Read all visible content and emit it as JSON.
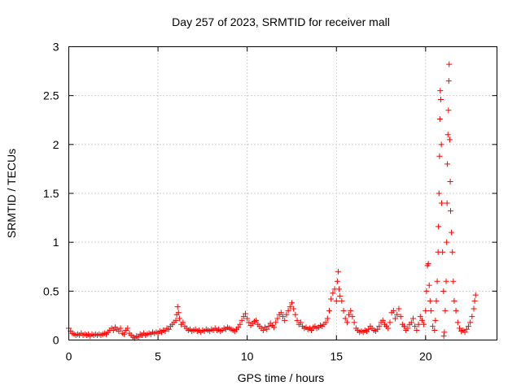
{
  "chart_data": {
    "type": "scatter",
    "title": "Day 257 of 2023, SRMTID for receiver mall",
    "xlabel": "GPS time / hours",
    "ylabel": "SRMTID / TECUs",
    "xlim": [
      0,
      24
    ],
    "ylim": [
      0,
      3
    ],
    "x_ticks": [
      0,
      5,
      10,
      15,
      20
    ],
    "x_tick_labels": [
      "0",
      "5",
      "10",
      "15",
      "20"
    ],
    "y_ticks": [
      0,
      0.5,
      1,
      1.5,
      2,
      2.5,
      3
    ],
    "y_tick_labels": [
      "0",
      "0.5",
      "1",
      "1.5",
      "2",
      "2.5",
      "3"
    ],
    "grid": true,
    "marker": "+",
    "series": [
      {
        "name": "SRMTID",
        "color": "#ff0000",
        "points": [
          [
            0.0,
            0.12
          ],
          [
            0.1,
            0.09
          ],
          [
            0.2,
            0.07
          ],
          [
            0.3,
            0.06
          ],
          [
            0.4,
            0.05
          ],
          [
            0.5,
            0.06
          ],
          [
            0.6,
            0.05
          ],
          [
            0.7,
            0.07
          ],
          [
            0.8,
            0.05
          ],
          [
            0.9,
            0.06
          ],
          [
            1.0,
            0.05
          ],
          [
            1.1,
            0.06
          ],
          [
            1.2,
            0.04
          ],
          [
            1.3,
            0.06
          ],
          [
            1.4,
            0.05
          ],
          [
            1.5,
            0.06
          ],
          [
            1.6,
            0.05
          ],
          [
            1.7,
            0.06
          ],
          [
            1.8,
            0.05
          ],
          [
            1.9,
            0.06
          ],
          [
            2.0,
            0.07
          ],
          [
            2.1,
            0.06
          ],
          [
            2.2,
            0.08
          ],
          [
            2.3,
            0.1
          ],
          [
            2.4,
            0.12
          ],
          [
            2.5,
            0.1
          ],
          [
            2.6,
            0.13
          ],
          [
            2.7,
            0.11
          ],
          [
            2.8,
            0.09
          ],
          [
            2.9,
            0.12
          ],
          [
            3.0,
            0.07
          ],
          [
            3.1,
            0.06
          ],
          [
            3.2,
            0.1
          ],
          [
            3.3,
            0.12
          ],
          [
            3.4,
            0.07
          ],
          [
            3.5,
            0.05
          ],
          [
            3.6,
            0.03
          ],
          [
            3.7,
            0.02
          ],
          [
            3.8,
            0.04
          ],
          [
            3.9,
            0.03
          ],
          [
            4.0,
            0.06
          ],
          [
            4.1,
            0.05
          ],
          [
            4.2,
            0.07
          ],
          [
            4.3,
            0.05
          ],
          [
            4.4,
            0.06
          ],
          [
            4.5,
            0.07
          ],
          [
            4.6,
            0.06
          ],
          [
            4.7,
            0.08
          ],
          [
            4.8,
            0.07
          ],
          [
            4.9,
            0.08
          ],
          [
            5.0,
            0.07
          ],
          [
            5.1,
            0.09
          ],
          [
            5.2,
            0.08
          ],
          [
            5.3,
            0.1
          ],
          [
            5.4,
            0.09
          ],
          [
            5.5,
            0.12
          ],
          [
            5.6,
            0.11
          ],
          [
            5.7,
            0.14
          ],
          [
            5.8,
            0.16
          ],
          [
            5.9,
            0.18
          ],
          [
            6.0,
            0.2
          ],
          [
            6.05,
            0.26
          ],
          [
            6.1,
            0.34
          ],
          [
            6.15,
            0.28
          ],
          [
            6.2,
            0.22
          ],
          [
            6.3,
            0.16
          ],
          [
            6.4,
            0.18
          ],
          [
            6.5,
            0.14
          ],
          [
            6.6,
            0.12
          ],
          [
            6.7,
            0.1
          ],
          [
            6.8,
            0.11
          ],
          [
            6.9,
            0.09
          ],
          [
            7.0,
            0.1
          ],
          [
            7.1,
            0.11
          ],
          [
            7.2,
            0.09
          ],
          [
            7.3,
            0.1
          ],
          [
            7.4,
            0.08
          ],
          [
            7.5,
            0.1
          ],
          [
            7.6,
            0.09
          ],
          [
            7.7,
            0.11
          ],
          [
            7.8,
            0.1
          ],
          [
            7.9,
            0.09
          ],
          [
            8.0,
            0.11
          ],
          [
            8.1,
            0.1
          ],
          [
            8.2,
            0.12
          ],
          [
            8.3,
            0.1
          ],
          [
            8.4,
            0.11
          ],
          [
            8.5,
            0.09
          ],
          [
            8.6,
            0.1
          ],
          [
            8.7,
            0.12
          ],
          [
            8.8,
            0.11
          ],
          [
            8.9,
            0.13
          ],
          [
            9.0,
            0.12
          ],
          [
            9.1,
            0.11
          ],
          [
            9.2,
            0.1
          ],
          [
            9.3,
            0.09
          ],
          [
            9.4,
            0.11
          ],
          [
            9.5,
            0.13
          ],
          [
            9.6,
            0.16
          ],
          [
            9.7,
            0.2
          ],
          [
            9.8,
            0.24
          ],
          [
            9.9,
            0.27
          ],
          [
            10.0,
            0.22
          ],
          [
            10.1,
            0.18
          ],
          [
            10.2,
            0.15
          ],
          [
            10.3,
            0.17
          ],
          [
            10.4,
            0.19
          ],
          [
            10.5,
            0.2
          ],
          [
            10.6,
            0.16
          ],
          [
            10.7,
            0.14
          ],
          [
            10.8,
            0.12
          ],
          [
            10.9,
            0.1
          ],
          [
            11.0,
            0.13
          ],
          [
            11.1,
            0.11
          ],
          [
            11.2,
            0.14
          ],
          [
            11.3,
            0.17
          ],
          [
            11.4,
            0.15
          ],
          [
            11.5,
            0.13
          ],
          [
            11.6,
            0.18
          ],
          [
            11.7,
            0.22
          ],
          [
            11.8,
            0.26
          ],
          [
            11.9,
            0.28
          ],
          [
            12.0,
            0.24
          ],
          [
            12.1,
            0.2
          ],
          [
            12.2,
            0.26
          ],
          [
            12.3,
            0.3
          ],
          [
            12.4,
            0.34
          ],
          [
            12.5,
            0.38
          ],
          [
            12.6,
            0.32
          ],
          [
            12.7,
            0.26
          ],
          [
            12.8,
            0.2
          ],
          [
            12.9,
            0.16
          ],
          [
            13.0,
            0.18
          ],
          [
            13.1,
            0.14
          ],
          [
            13.2,
            0.12
          ],
          [
            13.3,
            0.13
          ],
          [
            13.4,
            0.11
          ],
          [
            13.5,
            0.12
          ],
          [
            13.6,
            0.1
          ],
          [
            13.7,
            0.13
          ],
          [
            13.8,
            0.14
          ],
          [
            13.9,
            0.12
          ],
          [
            14.0,
            0.13
          ],
          [
            14.1,
            0.15
          ],
          [
            14.2,
            0.14
          ],
          [
            14.3,
            0.16
          ],
          [
            14.4,
            0.18
          ],
          [
            14.5,
            0.22
          ],
          [
            14.6,
            0.3
          ],
          [
            14.7,
            0.42
          ],
          [
            14.8,
            0.48
          ],
          [
            14.9,
            0.52
          ],
          [
            15.0,
            0.4
          ],
          [
            15.05,
            0.6
          ],
          [
            15.1,
            0.7
          ],
          [
            15.15,
            0.52
          ],
          [
            15.2,
            0.45
          ],
          [
            15.3,
            0.4
          ],
          [
            15.4,
            0.3
          ],
          [
            15.5,
            0.22
          ],
          [
            15.6,
            0.18
          ],
          [
            15.7,
            0.26
          ],
          [
            15.8,
            0.3
          ],
          [
            15.9,
            0.24
          ],
          [
            16.0,
            0.18
          ],
          [
            16.1,
            0.12
          ],
          [
            16.2,
            0.1
          ],
          [
            16.3,
            0.08
          ],
          [
            16.4,
            0.09
          ],
          [
            16.5,
            0.08
          ],
          [
            16.6,
            0.1
          ],
          [
            16.7,
            0.09
          ],
          [
            16.8,
            0.11
          ],
          [
            16.9,
            0.14
          ],
          [
            17.0,
            0.12
          ],
          [
            17.1,
            0.1
          ],
          [
            17.2,
            0.09
          ],
          [
            17.3,
            0.11
          ],
          [
            17.4,
            0.14
          ],
          [
            17.5,
            0.18
          ],
          [
            17.6,
            0.2
          ],
          [
            17.7,
            0.16
          ],
          [
            17.8,
            0.14
          ],
          [
            17.9,
            0.12
          ],
          [
            18.0,
            0.18
          ],
          [
            18.1,
            0.28
          ],
          [
            18.2,
            0.3
          ],
          [
            18.3,
            0.22
          ],
          [
            18.4,
            0.26
          ],
          [
            18.5,
            0.32
          ],
          [
            18.6,
            0.24
          ],
          [
            18.7,
            0.16
          ],
          [
            18.8,
            0.14
          ],
          [
            18.9,
            0.1
          ],
          [
            19.0,
            0.12
          ],
          [
            19.1,
            0.16
          ],
          [
            19.2,
            0.18
          ],
          [
            19.3,
            0.22
          ],
          [
            19.4,
            0.14
          ],
          [
            19.5,
            0.1
          ],
          [
            19.6,
            0.16
          ],
          [
            19.7,
            0.24
          ],
          [
            19.8,
            0.2
          ],
          [
            19.9,
            0.16
          ],
          [
            20.0,
            0.3
          ],
          [
            20.05,
            0.5
          ],
          [
            20.1,
            0.76
          ],
          [
            20.15,
            0.78
          ],
          [
            20.2,
            0.56
          ],
          [
            20.25,
            0.4
          ],
          [
            20.3,
            0.3
          ],
          [
            20.4,
            0.14
          ],
          [
            20.5,
            0.1
          ],
          [
            20.55,
            0.2
          ],
          [
            20.6,
            0.4
          ],
          [
            20.65,
            0.6
          ],
          [
            20.7,
            0.9
          ],
          [
            20.72,
            1.16
          ],
          [
            20.75,
            1.5
          ],
          [
            20.78,
            1.88
          ],
          [
            20.8,
            2.26
          ],
          [
            20.82,
            2.55
          ],
          [
            20.85,
            2.46
          ],
          [
            20.88,
            2.0
          ],
          [
            20.9,
            1.4
          ],
          [
            20.95,
            0.9
          ],
          [
            21.0,
            0.5
          ],
          [
            21.02,
            0.04
          ],
          [
            21.05,
            0.08
          ],
          [
            21.1,
            0.3
          ],
          [
            21.15,
            0.6
          ],
          [
            21.18,
            1.0
          ],
          [
            21.2,
            1.4
          ],
          [
            21.22,
            1.8
          ],
          [
            21.25,
            2.1
          ],
          [
            21.28,
            2.35
          ],
          [
            21.3,
            2.65
          ],
          [
            21.32,
            2.82
          ],
          [
            21.35,
            2.05
          ],
          [
            21.38,
            1.62
          ],
          [
            21.4,
            1.32
          ],
          [
            21.45,
            1.1
          ],
          [
            21.5,
            0.9
          ],
          [
            21.55,
            0.6
          ],
          [
            21.6,
            0.4
          ],
          [
            21.7,
            0.3
          ],
          [
            21.8,
            0.18
          ],
          [
            21.9,
            0.12
          ],
          [
            22.0,
            0.09
          ],
          [
            22.1,
            0.1
          ],
          [
            22.2,
            0.08
          ],
          [
            22.3,
            0.11
          ],
          [
            22.4,
            0.14
          ],
          [
            22.5,
            0.18
          ],
          [
            22.6,
            0.24
          ],
          [
            22.7,
            0.32
          ],
          [
            22.75,
            0.4
          ],
          [
            22.8,
            0.46
          ]
        ]
      }
    ]
  }
}
